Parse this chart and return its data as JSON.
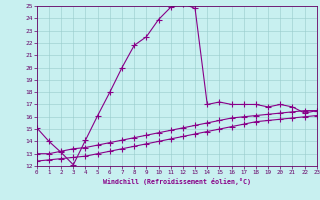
{
  "xlabel": "Windchill (Refroidissement éolien,°C)",
  "xlim": [
    0,
    23
  ],
  "ylim": [
    12,
    25
  ],
  "xticks": [
    0,
    1,
    2,
    3,
    4,
    5,
    6,
    7,
    8,
    9,
    10,
    11,
    12,
    13,
    14,
    15,
    16,
    17,
    18,
    19,
    20,
    21,
    22,
    23
  ],
  "yticks": [
    12,
    13,
    14,
    15,
    16,
    17,
    18,
    19,
    20,
    21,
    22,
    23,
    24,
    25
  ],
  "bg_color": "#c8f0f0",
  "line_color": "#880088",
  "line1_x": [
    0,
    1,
    2,
    3,
    4,
    5,
    6,
    7,
    8,
    9,
    10,
    11,
    12,
    13,
    14,
    15,
    16,
    17,
    18,
    19,
    20,
    21,
    22,
    23
  ],
  "line1_y": [
    15.1,
    14.0,
    13.1,
    12.1,
    14.1,
    16.1,
    18.0,
    20.0,
    21.8,
    22.5,
    23.9,
    24.9,
    25.2,
    24.8,
    17.0,
    17.2,
    17.0,
    17.0,
    17.0,
    16.8,
    17.0,
    16.8,
    16.3,
    16.5
  ],
  "line2_x": [
    0,
    1,
    2,
    3,
    4,
    5,
    6,
    7,
    8,
    9,
    10,
    11,
    12,
    13,
    14,
    15,
    16,
    17,
    18,
    19,
    20,
    21,
    22,
    23
  ],
  "line2_y": [
    13.0,
    13.0,
    13.2,
    13.4,
    13.5,
    13.7,
    13.9,
    14.1,
    14.3,
    14.5,
    14.7,
    14.9,
    15.1,
    15.3,
    15.5,
    15.7,
    15.9,
    16.0,
    16.1,
    16.2,
    16.3,
    16.4,
    16.5,
    16.5
  ],
  "line3_x": [
    0,
    1,
    2,
    3,
    4,
    5,
    6,
    7,
    8,
    9,
    10,
    11,
    12,
    13,
    14,
    15,
    16,
    17,
    18,
    19,
    20,
    21,
    22,
    23
  ],
  "line3_y": [
    12.4,
    12.5,
    12.6,
    12.7,
    12.8,
    13.0,
    13.2,
    13.4,
    13.6,
    13.8,
    14.0,
    14.2,
    14.4,
    14.6,
    14.8,
    15.0,
    15.2,
    15.4,
    15.6,
    15.7,
    15.8,
    15.9,
    16.0,
    16.1
  ]
}
